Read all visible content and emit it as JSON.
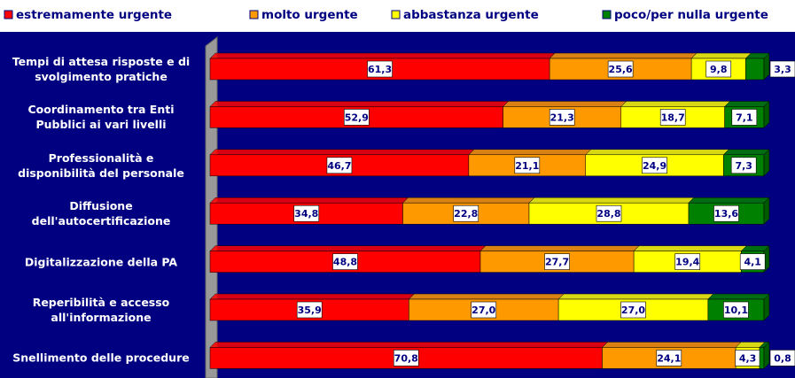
{
  "chart_data": {
    "type": "stacked-bar-horizontal",
    "categories": [
      "Tempi di attesa risposte e di\nsvolgimento pratiche",
      "Coordinamento tra Enti\nPubblici ai vari livelli",
      "Professionalità e\ndisponibilità del personale",
      "Diffusione\ndell'autocertificazione",
      "Digitalizzazione della PA",
      "Reperibilità e accesso\nall'informazione",
      "Snellimento delle procedure"
    ],
    "series": [
      {
        "name": "estremamente urgente",
        "color": "#ff0000",
        "values": [
          61.3,
          52.9,
          46.7,
          34.8,
          48.8,
          35.9,
          70.8
        ],
        "value_labels": [
          "61,3",
          "52,9",
          "46,7",
          "34,8",
          "48,8",
          "35,9",
          "70,8"
        ]
      },
      {
        "name": "molto urgente",
        "color": "#ff9900",
        "values": [
          25.6,
          21.3,
          21.1,
          22.8,
          27.7,
          27.0,
          24.1
        ],
        "value_labels": [
          "25,6",
          "21,3",
          "21,1",
          "22,8",
          "27,7",
          "27,0",
          "24,1"
        ]
      },
      {
        "name": "abbastanza urgente",
        "color": "#ffff00",
        "values": [
          9.8,
          18.7,
          24.9,
          28.8,
          19.4,
          27.0,
          4.3
        ],
        "value_labels": [
          "9,8",
          "18,7",
          "24,9",
          "28,8",
          "19,4",
          "27,0",
          "4,3"
        ]
      },
      {
        "name": "poco/per nulla urgente",
        "color": "#008000",
        "values": [
          3.3,
          7.1,
          7.3,
          13.6,
          4.1,
          10.1,
          0.8
        ],
        "value_labels": [
          "3,3",
          "7,1",
          "7,3",
          "13,6",
          "4,1",
          "10,1",
          "0,8"
        ]
      }
    ],
    "xlim": [
      0,
      100
    ],
    "legend": "top"
  }
}
